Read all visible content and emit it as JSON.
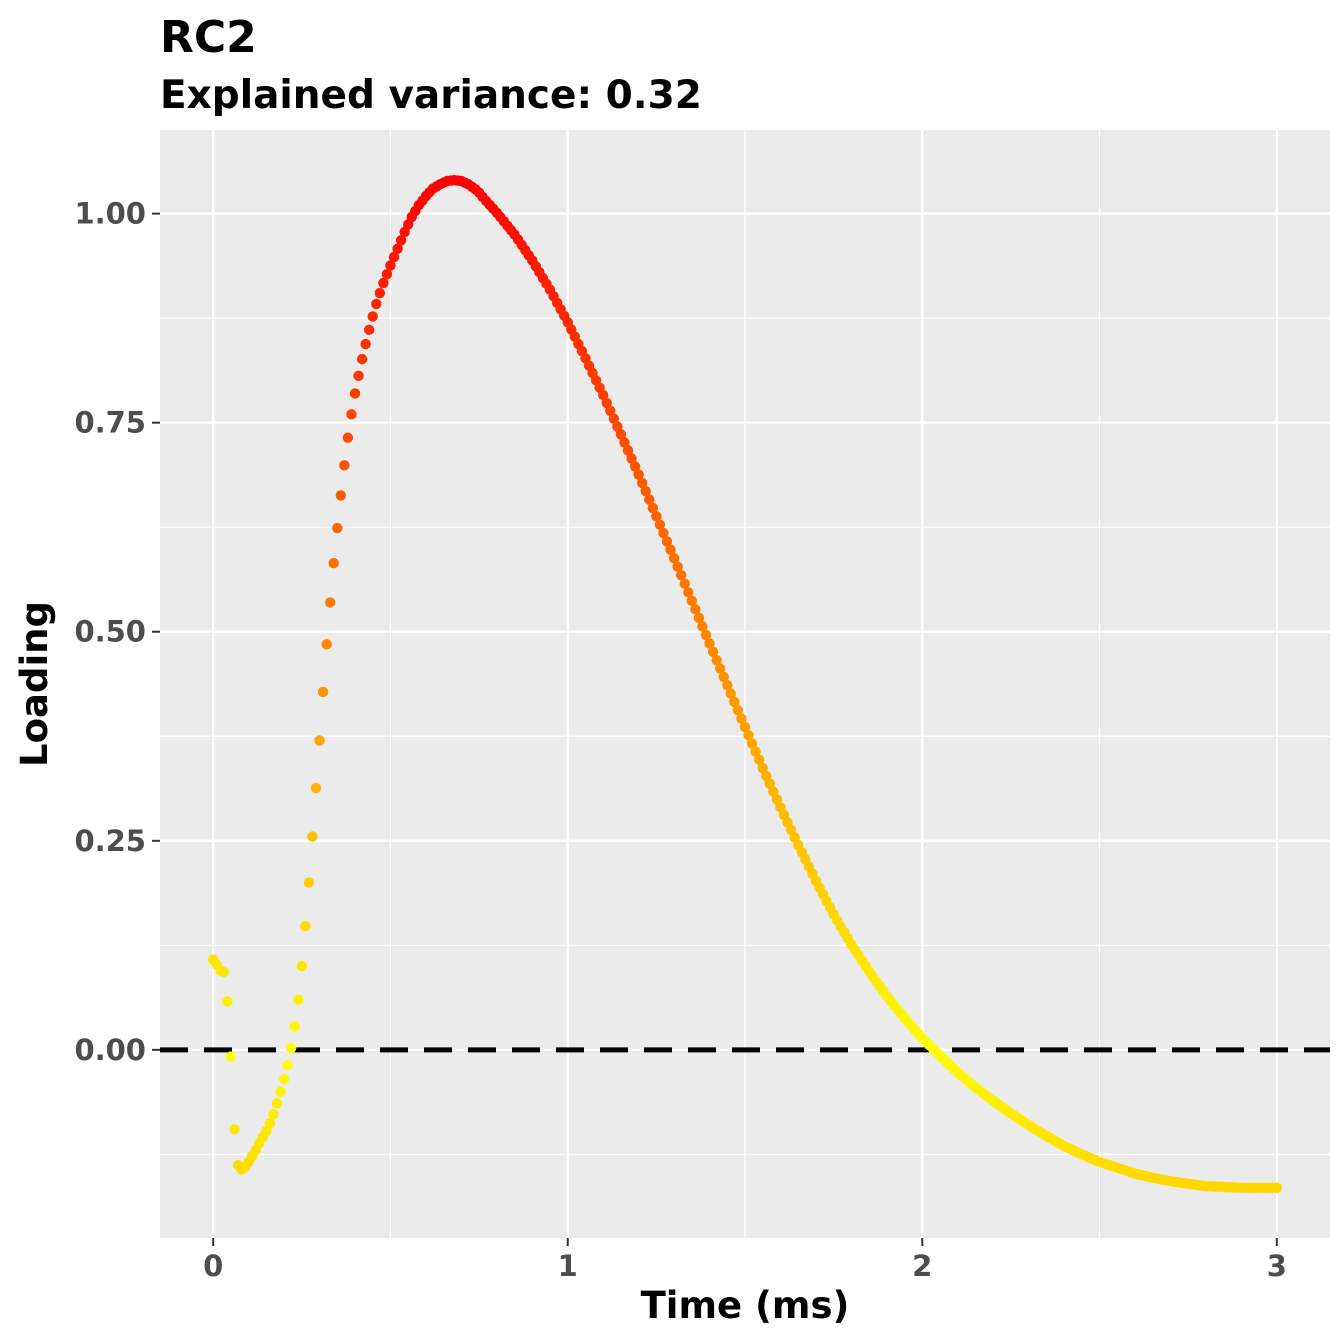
{
  "chart_data": {
    "type": "scatter",
    "title": "RC2",
    "subtitle": "Explained variance: 0.32",
    "xlabel": "Time (ms)",
    "ylabel": "Loading",
    "xlim": [
      -0.15,
      3.15
    ],
    "ylim": [
      -0.225,
      1.1
    ],
    "x_ticks": [
      0,
      1,
      2,
      3
    ],
    "x_tick_labels": [
      "0",
      "1",
      "2",
      "3"
    ],
    "y_ticks": [
      0,
      0.25,
      0.5,
      0.75,
      1.0
    ],
    "y_tick_labels": [
      "0.00",
      "0.25",
      "0.50",
      "0.75",
      "1.00"
    ],
    "grid": true,
    "reference_line": {
      "y": 0,
      "style": "dashed",
      "color": "#000000"
    },
    "color_scale": {
      "low": "#ffff00",
      "high": "#ff0000",
      "mapped_to": "abs(loading)"
    },
    "panel_color": "#ebebeb",
    "series": [
      {
        "x": [
          0.0,
          0.01,
          0.02,
          0.03,
          0.04,
          0.05,
          0.06,
          0.07,
          0.08,
          0.09,
          0.1,
          0.11,
          0.12,
          0.13,
          0.14,
          0.15,
          0.16,
          0.17,
          0.18,
          0.19,
          0.2,
          0.21,
          0.22,
          0.23,
          0.24,
          0.25,
          0.26,
          0.27,
          0.28,
          0.29,
          0.3,
          0.31,
          0.32,
          0.33,
          0.34,
          0.35,
          0.36,
          0.37,
          0.38,
          0.39,
          0.4,
          0.41,
          0.42,
          0.43,
          0.44,
          0.45,
          0.46,
          0.47,
          0.48,
          0.5,
          0.52,
          0.54,
          0.56,
          0.58,
          0.6,
          0.62,
          0.64,
          0.66,
          0.68,
          0.7,
          0.72,
          0.74,
          0.75,
          0.77,
          0.8,
          0.85,
          0.9,
          0.95,
          1.0,
          1.05,
          1.1,
          1.15,
          1.2,
          1.25,
          1.3,
          1.35,
          1.4,
          1.45,
          1.5,
          1.55,
          1.6,
          1.65,
          1.7,
          1.75,
          1.8,
          1.85,
          1.9,
          1.95,
          2.0,
          2.05,
          2.1,
          2.15,
          2.2,
          2.25,
          2.3,
          2.35,
          2.4,
          2.45,
          2.5,
          2.55,
          2.6,
          2.65,
          2.7,
          2.75,
          2.8,
          2.85,
          2.9,
          2.95,
          3.0
        ],
        "y": [
          0.108,
          0.102,
          0.095,
          0.093,
          0.058,
          -0.008,
          -0.095,
          -0.138,
          -0.143,
          -0.14,
          -0.134,
          -0.127,
          -0.12,
          -0.112,
          -0.104,
          -0.097,
          -0.088,
          -0.077,
          -0.064,
          -0.05,
          -0.035,
          -0.018,
          0.002,
          0.028,
          0.06,
          0.1,
          0.148,
          0.2,
          0.255,
          0.313,
          0.37,
          0.428,
          0.485,
          0.535,
          0.582,
          0.624,
          0.663,
          0.699,
          0.732,
          0.76,
          0.785,
          0.806,
          0.826,
          0.844,
          0.861,
          0.877,
          0.892,
          0.905,
          0.917,
          0.938,
          0.958,
          0.978,
          0.996,
          1.01,
          1.021,
          1.03,
          1.035,
          1.039,
          1.04,
          1.039,
          1.035,
          1.029,
          1.025,
          1.015,
          1.001,
          0.975,
          0.944,
          0.909,
          0.87,
          0.827,
          0.783,
          0.736,
          0.688,
          0.638,
          0.588,
          0.537,
          0.486,
          0.436,
          0.386,
          0.337,
          0.29,
          0.245,
          0.202,
          0.162,
          0.126,
          0.094,
          0.064,
          0.038,
          0.014,
          -0.007,
          -0.027,
          -0.045,
          -0.061,
          -0.076,
          -0.09,
          -0.103,
          -0.115,
          -0.125,
          -0.134,
          -0.141,
          -0.148,
          -0.153,
          -0.157,
          -0.16,
          -0.163,
          -0.164,
          -0.165,
          -0.165,
          -0.165
        ]
      }
    ]
  }
}
